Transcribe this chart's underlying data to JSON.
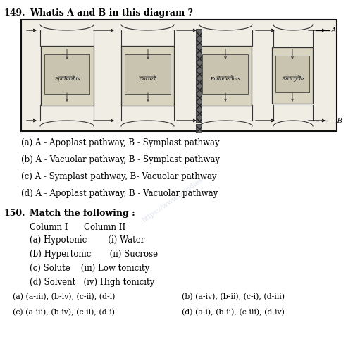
{
  "bg_color": "#ffffff",
  "q149_number": "149.",
  "q149_text": "Whatis A and B in this diagram ?",
  "q149_options": [
    "(a) A - Apoplast pathway, B - Symplast pathway",
    "(b) A - Vacuolar pathway, B - Symplast pathway",
    "(c) A - Symplast pathway, B- Vacuolar pathway",
    "(d) A - Apoplast pathway, B - Vacuolar pathway"
  ],
  "q150_number": "150.",
  "q150_text": "Match the following :",
  "col_header": "Column I      Column II",
  "q150_rows": [
    "(a) Hypotonic        (i) Water",
    "(b) Hypertonic       (ii) Sucrose",
    "(c) Solute    (iii) Low tonicity",
    "(d) Solvent   (iv) High tonicity"
  ],
  "ans_left": [
    "(a) (a-iii), (b-iv), (c-ii), (d-i)",
    "(c) (a-iii), (b-iv), (c-ii), (d-i)"
  ],
  "ans_right": [
    "(b) (a-iv), (b-ii), (c-i), (d-iii)",
    "(d) (a-i), (b-ii), (c-iii), (d-iv)"
  ],
  "watermark": "https://www.estudies.in",
  "cell_labels": [
    "Epidermis",
    "Cortex",
    "Endodermis",
    "Pericycle"
  ],
  "A_label": "A",
  "B_label": "B"
}
